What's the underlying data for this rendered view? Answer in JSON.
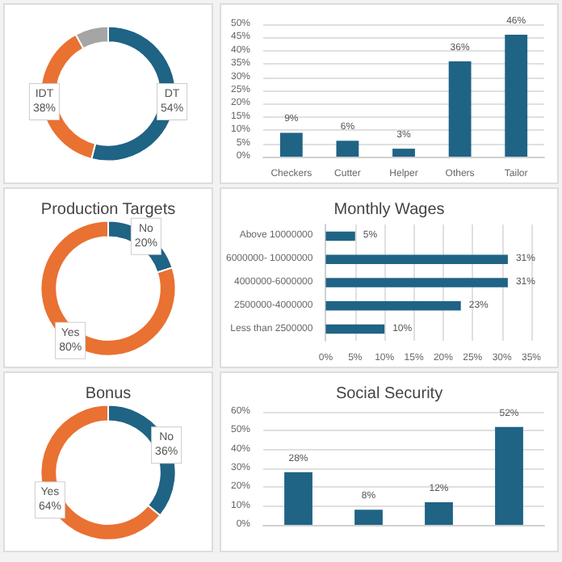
{
  "chart_data": [
    {
      "type": "donut",
      "categories": [
        "DT",
        "IDT",
        null
      ],
      "values": [
        54,
        38,
        8
      ],
      "colors": [
        "#1f6385",
        "#e97132",
        "#a5a5a5"
      ],
      "value_labels": [
        "54%",
        "38%",
        null
      ]
    },
    {
      "type": "bar",
      "categories": [
        "Checkers",
        "Cutter",
        "Helper",
        "Others",
        "Tailor"
      ],
      "values": [
        9,
        6,
        3,
        36,
        46
      ],
      "color": "#1f6385",
      "value_labels": [
        "9%",
        "6%",
        "3%",
        "36%",
        "46%"
      ],
      "ylim": [
        0,
        50
      ],
      "yticks": [
        {
          "value": 0,
          "label": "0%"
        },
        {
          "value": 5,
          "label": "5%"
        },
        {
          "value": 10,
          "label": "10%"
        },
        {
          "value": 15,
          "label": "15%"
        },
        {
          "value": 20,
          "label": "20%"
        },
        {
          "value": 25,
          "label": "25%"
        },
        {
          "value": 30,
          "label": "30%"
        },
        {
          "value": 35,
          "label": "35%"
        },
        {
          "value": 40,
          "label": "40%"
        },
        {
          "value": 45,
          "label": "45%"
        },
        {
          "value": 50,
          "label": "50%"
        }
      ],
      "grid": "y"
    },
    {
      "type": "donut",
      "title": "Production Targets",
      "categories": [
        "No",
        "Yes"
      ],
      "values": [
        20,
        80
      ],
      "colors": [
        "#1f6385",
        "#e97132"
      ],
      "value_labels": [
        "20%",
        "80%"
      ]
    },
    {
      "type": "bar",
      "title": "Monthly Wages",
      "orientation": "horizontal",
      "categories": [
        "Above 10000000",
        "6000000- 10000000",
        "4000000-6000000",
        "2500000-4000000",
        "Less than 2500000"
      ],
      "values": [
        5,
        31,
        31,
        23,
        10
      ],
      "color": "#1f6385",
      "value_labels": [
        "5%",
        "31%",
        "31%",
        "23%",
        "10%"
      ],
      "xlim": [
        0,
        35
      ],
      "xticks": [
        {
          "value": 0,
          "label": "0%"
        },
        {
          "value": 5,
          "label": "5%"
        },
        {
          "value": 10,
          "label": "10%"
        },
        {
          "value": 15,
          "label": "15%"
        },
        {
          "value": 20,
          "label": "20%"
        },
        {
          "value": 25,
          "label": "25%"
        },
        {
          "value": 30,
          "label": "30%"
        },
        {
          "value": 35,
          "label": "35%"
        }
      ],
      "grid": "x"
    },
    {
      "type": "donut",
      "title": "Bonus",
      "categories": [
        "No",
        "Yes"
      ],
      "values": [
        36,
        64
      ],
      "colors": [
        "#1f6385",
        "#e97132"
      ],
      "value_labels": [
        "36%",
        "64%"
      ]
    },
    {
      "type": "bar",
      "title": "Social Security",
      "categories": [
        null,
        null,
        null,
        null
      ],
      "values": [
        28,
        8,
        12,
        52
      ],
      "color": "#1f6385",
      "value_labels": [
        "28%",
        "8%",
        "12%",
        "52%"
      ],
      "ylim": [
        0,
        60
      ],
      "yticks": [
        {
          "value": 0,
          "label": "0%"
        },
        {
          "value": 10,
          "label": "10%"
        },
        {
          "value": 20,
          "label": "20%"
        },
        {
          "value": 30,
          "label": "30%"
        },
        {
          "value": 40,
          "label": "40%"
        },
        {
          "value": 50,
          "label": "50%"
        },
        {
          "value": 60,
          "label": "60%"
        }
      ],
      "grid": "y"
    }
  ]
}
